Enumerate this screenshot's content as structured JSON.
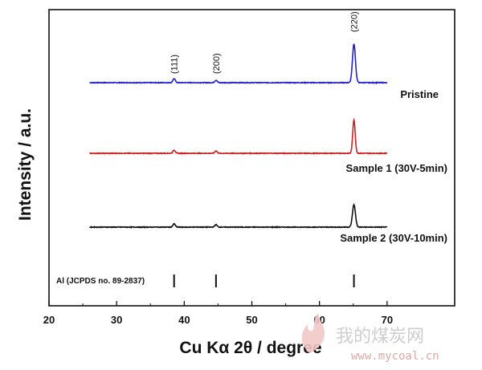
{
  "chart_data": {
    "type": "line",
    "xlabel": "Cu Kα 2θ / degree",
    "ylabel": "Intensity / a.u.",
    "xlim": [
      20,
      80
    ],
    "x_ticks": [
      20,
      30,
      40,
      50,
      60,
      70
    ],
    "grid": false,
    "peaks": [
      {
        "label": "(111)",
        "x": 38.5
      },
      {
        "label": "(200)",
        "x": 44.7
      },
      {
        "label": "(220)",
        "x": 65.1
      }
    ],
    "series": [
      {
        "name": "Pristine",
        "color": "#2222cc",
        "x_range": [
          26,
          70
        ],
        "peak_heights": [
          5,
          3,
          48
        ]
      },
      {
        "name": "Sample 1 (30V-5min)",
        "color": "#cc2222",
        "x_range": [
          26,
          70
        ],
        "peak_heights": [
          4,
          3,
          42
        ]
      },
      {
        "name": "Sample 2 (30V-10min)",
        "color": "#111111",
        "x_range": [
          26,
          70
        ],
        "peak_heights": [
          4,
          3,
          28
        ]
      }
    ],
    "reference": {
      "label": "Al (JCPDS no. 89-2837)",
      "positions": [
        38.5,
        44.7,
        65.1
      ]
    }
  },
  "watermark": {
    "text": "我的煤炭网",
    "url": "www.mycoal.cn"
  }
}
